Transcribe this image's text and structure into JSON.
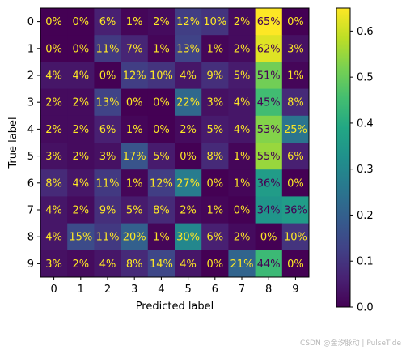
{
  "chart_data": {
    "type": "heatmap",
    "xlabel": "Predicted label",
    "ylabel": "True label",
    "x_ticks": [
      "0",
      "1",
      "2",
      "3",
      "4",
      "5",
      "6",
      "7",
      "8",
      "9"
    ],
    "y_ticks": [
      "0",
      "1",
      "2",
      "3",
      "4",
      "5",
      "6",
      "7",
      "8",
      "9"
    ],
    "cell_labels": [
      [
        "0%",
        "0%",
        "6%",
        "1%",
        "2%",
        "12%",
        "10%",
        "2%",
        "65%",
        "0%"
      ],
      [
        "0%",
        "0%",
        "11%",
        "7%",
        "1%",
        "13%",
        "1%",
        "2%",
        "62%",
        "3%"
      ],
      [
        "4%",
        "4%",
        "0%",
        "12%",
        "10%",
        "4%",
        "9%",
        "5%",
        "51%",
        "1%"
      ],
      [
        "2%",
        "2%",
        "13%",
        "0%",
        "0%",
        "22%",
        "3%",
        "4%",
        "45%",
        "8%"
      ],
      [
        "2%",
        "2%",
        "6%",
        "1%",
        "0%",
        "2%",
        "5%",
        "4%",
        "53%",
        "25%"
      ],
      [
        "3%",
        "2%",
        "3%",
        "17%",
        "5%",
        "0%",
        "8%",
        "1%",
        "55%",
        "6%"
      ],
      [
        "8%",
        "4%",
        "11%",
        "1%",
        "12%",
        "27%",
        "0%",
        "1%",
        "36%",
        "0%"
      ],
      [
        "4%",
        "2%",
        "9%",
        "5%",
        "8%",
        "2%",
        "1%",
        "0%",
        "34%",
        "36%"
      ],
      [
        "4%",
        "15%",
        "11%",
        "20%",
        "1%",
        "30%",
        "6%",
        "2%",
        "0%",
        "10%"
      ],
      [
        "3%",
        "2%",
        "4%",
        "8%",
        "14%",
        "4%",
        "0%",
        "21%",
        "44%",
        "0%"
      ]
    ],
    "values": [
      [
        0.0,
        0.0,
        0.06,
        0.01,
        0.02,
        0.12,
        0.1,
        0.02,
        0.65,
        0.0
      ],
      [
        0.0,
        0.0,
        0.11,
        0.07,
        0.01,
        0.13,
        0.01,
        0.02,
        0.62,
        0.03
      ],
      [
        0.04,
        0.04,
        0.0,
        0.12,
        0.1,
        0.04,
        0.09,
        0.05,
        0.51,
        0.01
      ],
      [
        0.02,
        0.02,
        0.13,
        0.0,
        0.0,
        0.22,
        0.03,
        0.04,
        0.45,
        0.08
      ],
      [
        0.02,
        0.02,
        0.06,
        0.01,
        0.0,
        0.02,
        0.05,
        0.04,
        0.53,
        0.25
      ],
      [
        0.03,
        0.02,
        0.03,
        0.17,
        0.05,
        0.0,
        0.08,
        0.01,
        0.55,
        0.06
      ],
      [
        0.08,
        0.04,
        0.11,
        0.01,
        0.12,
        0.27,
        0.0,
        0.01,
        0.36,
        0.0
      ],
      [
        0.04,
        0.02,
        0.09,
        0.05,
        0.08,
        0.02,
        0.01,
        0.0,
        0.34,
        0.36
      ],
      [
        0.04,
        0.15,
        0.11,
        0.2,
        0.01,
        0.3,
        0.06,
        0.02,
        0.0,
        0.1
      ],
      [
        0.03,
        0.02,
        0.04,
        0.08,
        0.14,
        0.04,
        0.0,
        0.21,
        0.44,
        0.0
      ]
    ],
    "colormap": "viridis",
    "vmin": 0,
    "vmax": 0.65,
    "colorbar_ticks": [
      "0.0",
      "0.1",
      "0.2",
      "0.3",
      "0.4",
      "0.5",
      "0.6"
    ],
    "colorbar_tick_values": [
      0,
      0.1,
      0.2,
      0.3,
      0.4,
      0.5,
      0.6
    ],
    "text_color_dark_bg": "#fde725",
    "text_color_light_bg": "#440154"
  },
  "watermark": "CSDN @金汐脉动 | PulseTide"
}
